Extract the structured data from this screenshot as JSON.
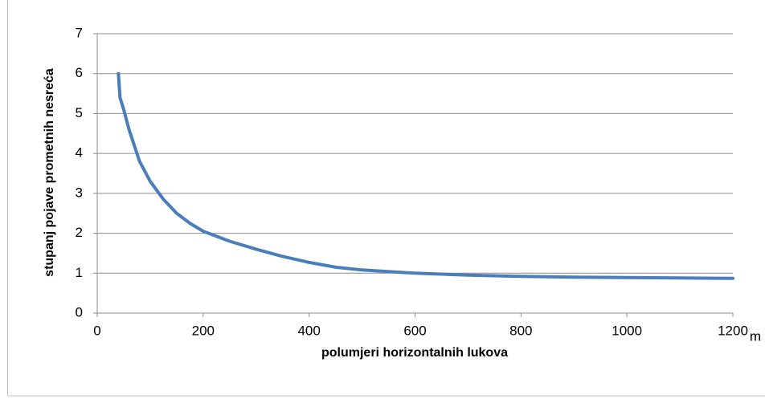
{
  "chart_data": {
    "type": "line",
    "x_label": "polumjeri horizontalnih lukova",
    "y_label": "stupanj pojave prometnih nesreća",
    "annotations": [
      "m"
    ],
    "x": [
      40,
      43,
      50,
      60,
      70,
      80,
      100,
      125,
      150,
      175,
      200,
      250,
      300,
      350,
      400,
      450,
      500,
      600,
      700,
      800,
      900,
      1000,
      1100,
      1200
    ],
    "series": [
      {
        "name": null,
        "color": "#4a7ebb",
        "values": [
          6,
          5.4,
          5.1,
          4.6,
          4.2,
          3.8,
          3.3,
          2.85,
          2.5,
          2.25,
          2.05,
          1.8,
          1.6,
          1.42,
          1.27,
          1.15,
          1.08,
          1.0,
          0.95,
          0.92,
          0.9,
          0.89,
          0.88,
          0.87
        ]
      }
    ],
    "xlim": [
      0,
      1200
    ],
    "xticks": [
      0,
      200,
      400,
      600,
      800,
      1000,
      1200
    ],
    "ylim": [
      0,
      7
    ],
    "yticks": [
      0,
      1,
      2,
      3,
      4,
      5,
      6,
      7
    ],
    "grid": true
  }
}
